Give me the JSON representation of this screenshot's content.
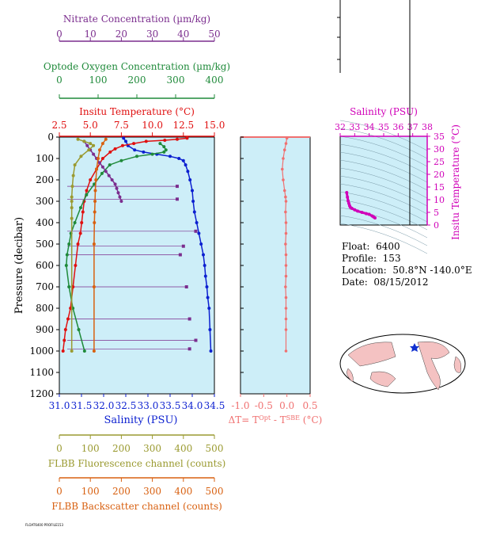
{
  "info": {
    "float_label": "Float:",
    "float": "6400",
    "profile_label": "Profile:",
    "profile": "153",
    "location_label": "Location:",
    "location": "50.8°N  -140.0°E",
    "date_label": "Date:",
    "date": "08/15/2012"
  },
  "footer_text": "FLOAT6400 PROFILE153",
  "colors": {
    "nitrate": "#7b2d8e",
    "oxygen": "#1f8a3a",
    "temperature": "#e01010",
    "salinity": "#0b1fd0",
    "fluorescence": "#9a9a30",
    "backscatter": "#d86010",
    "delta": "#f07070",
    "ts": "#d000b8",
    "panel_bg": "#cdeef8"
  },
  "chart_data": [
    {
      "type": "line",
      "panel": "main",
      "ylabel": "Pressure (decibar)",
      "ylim": [
        1200,
        0
      ],
      "yticks": [
        0,
        100,
        200,
        300,
        400,
        500,
        600,
        700,
        800,
        900,
        1000,
        1100,
        1200
      ],
      "axes": {
        "salinity": {
          "label": "Salinity (PSU)",
          "lim": [
            31.0,
            34.5
          ],
          "ticks": [
            "31.0",
            "31.5",
            "32.0",
            "32.5",
            "33.0",
            "33.5",
            "34.0",
            "34.5"
          ]
        },
        "temperature": {
          "label": "Insitu Temperature (°C)",
          "lim": [
            2.5,
            15.0
          ],
          "ticks": [
            "2.5",
            "5.0",
            "7.5",
            "10.0",
            "12.5",
            "15.0"
          ]
        },
        "oxygen": {
          "label": "Optode Oxygen Concentration (µm/kg)",
          "lim": [
            0,
            400
          ],
          "ticks": [
            "0",
            "100",
            "200",
            "300",
            "400"
          ]
        },
        "nitrate": {
          "label": "Nitrate Concentration (µm/kg)",
          "lim": [
            0,
            50
          ],
          "ticks": [
            "0",
            "10",
            "20",
            "30",
            "40",
            "50"
          ]
        },
        "fluorescence": {
          "label": "FLBB Fluorescence channel (counts)",
          "lim": [
            0,
            500
          ],
          "ticks": [
            "0",
            "100",
            "200",
            "300",
            "400",
            "500"
          ]
        },
        "backscatter": {
          "label": "FLBB Backscatter channel (counts)",
          "lim": [
            0,
            500
          ],
          "ticks": [
            "0",
            "100",
            "200",
            "300",
            "400",
            "500"
          ]
        }
      },
      "series": [
        {
          "name": "Salinity",
          "axis": "salinity",
          "x": [
            32.45,
            32.5,
            32.55,
            32.7,
            32.9,
            33.2,
            33.5,
            33.7,
            33.8,
            33.85,
            33.9,
            33.95,
            34.0,
            34.02,
            34.05,
            34.1,
            34.15,
            34.2,
            34.25,
            34.28,
            34.3,
            34.33,
            34.35,
            34.38,
            34.4,
            34.42
          ],
          "y": [
            5,
            20,
            40,
            60,
            70,
            80,
            90,
            100,
            110,
            130,
            160,
            200,
            250,
            300,
            350,
            400,
            450,
            500,
            550,
            600,
            650,
            700,
            750,
            800,
            900,
            1000
          ]
        },
        {
          "name": "Temperature",
          "axis": "temperature",
          "x": [
            12.8,
            12.0,
            11.0,
            9.5,
            8.5,
            7.6,
            7.0,
            6.6,
            6.0,
            5.5,
            5.0,
            4.7,
            4.5,
            4.4,
            4.3,
            4.2,
            4.0,
            3.8,
            3.6,
            3.4,
            3.2,
            3.0,
            2.9,
            2.8
          ],
          "y": [
            5,
            10,
            15,
            20,
            30,
            40,
            55,
            70,
            100,
            150,
            200,
            250,
            300,
            350,
            400,
            450,
            500,
            600,
            700,
            800,
            850,
            900,
            950,
            1000
          ]
        },
        {
          "name": "Oxygen",
          "axis": "oxygen",
          "x": [
            260,
            270,
            275,
            270,
            240,
            200,
            160,
            130,
            110,
            90,
            70,
            55,
            40,
            30,
            25,
            20,
            18,
            25,
            35,
            50,
            65
          ],
          "y": [
            30,
            45,
            60,
            70,
            80,
            90,
            110,
            130,
            170,
            220,
            270,
            330,
            400,
            450,
            500,
            550,
            600,
            700,
            800,
            900,
            1000
          ]
        },
        {
          "name": "Nitrate",
          "axis": "nitrate",
          "x": [
            8,
            9,
            10,
            11,
            12,
            13,
            14,
            15,
            16,
            17,
            18,
            18.5,
            19,
            19.5,
            20
          ],
          "y": [
            20,
            40,
            60,
            80,
            100,
            120,
            140,
            160,
            180,
            200,
            220,
            240,
            260,
            280,
            300
          ]
        },
        {
          "name": "Fluorescence",
          "axis": "fluorescence",
          "x": [
            60,
            80,
            100,
            110,
            95,
            70,
            50,
            45,
            42,
            40,
            40,
            40,
            40,
            40
          ],
          "y": [
            10,
            20,
            30,
            40,
            60,
            90,
            130,
            180,
            230,
            280,
            300,
            330,
            380,
            1000
          ]
        },
        {
          "name": "Backscatter",
          "axis": "backscatter",
          "x": [
            150,
            140,
            130,
            125,
            120,
            118,
            116,
            115,
            114,
            113,
            112,
            112,
            112
          ],
          "y": [
            10,
            30,
            60,
            100,
            150,
            200,
            250,
            300,
            350,
            400,
            500,
            700,
            1000
          ]
        }
      ],
      "spikes": [
        {
          "y": 230,
          "x": 38
        },
        {
          "y": 290,
          "x": 38
        },
        {
          "y": 440,
          "x": 44
        },
        {
          "y": 510,
          "x": 40
        },
        {
          "y": 550,
          "x": 39
        },
        {
          "y": 700,
          "x": 41
        },
        {
          "y": 850,
          "x": 42
        },
        {
          "y": 950,
          "x": 44
        },
        {
          "y": 990,
          "x": 42
        }
      ]
    },
    {
      "type": "line",
      "panel": "delta",
      "xlabel": "ΔT= T",
      "xlabel_sup1": "Opt",
      "xlabel_mid": " - T",
      "xlabel_sup2": "SBE",
      "xlabel_end": " (°C)",
      "xlim": [
        -1.0,
        0.5
      ],
      "xticks": [
        "-1.0",
        "-0.5",
        "0.0",
        "0.5"
      ],
      "ylim": [
        1200,
        0
      ],
      "x": [
        0.0,
        -0.02,
        -0.05,
        -0.08,
        -0.1,
        -0.08,
        -0.05,
        -0.03,
        -0.02,
        -0.03,
        -0.02,
        -0.02,
        -0.03,
        -0.02,
        -0.02,
        -0.02,
        -0.03,
        -0.02,
        -0.02,
        -0.02,
        -0.02,
        -0.02
      ],
      "y": [
        5,
        30,
        60,
        100,
        150,
        200,
        250,
        280,
        300,
        350,
        400,
        450,
        500,
        550,
        600,
        650,
        700,
        750,
        800,
        850,
        900,
        1000
      ]
    },
    {
      "type": "scatter",
      "panel": "ts",
      "xlabel": "Salinity (PSU)",
      "ylabel": "Insitu Temperature (°C)",
      "xlim": [
        32,
        38
      ],
      "xticks": [
        "32",
        "33",
        "34",
        "35",
        "36",
        "37",
        "38"
      ],
      "ylim": [
        0,
        35
      ],
      "yticks": [
        "0",
        "5",
        "10",
        "15",
        "20",
        "25",
        "30",
        "35"
      ],
      "x": [
        32.45,
        32.5,
        32.55,
        32.6,
        32.65,
        32.7,
        32.8,
        33.0,
        33.2,
        33.5,
        33.8,
        34.0,
        34.2,
        34.3,
        34.4
      ],
      "y": [
        12.8,
        11.0,
        9.5,
        8.5,
        7.6,
        7.0,
        6.6,
        6.0,
        5.5,
        5.0,
        4.5,
        4.2,
        3.6,
        3.2,
        2.8
      ]
    }
  ]
}
